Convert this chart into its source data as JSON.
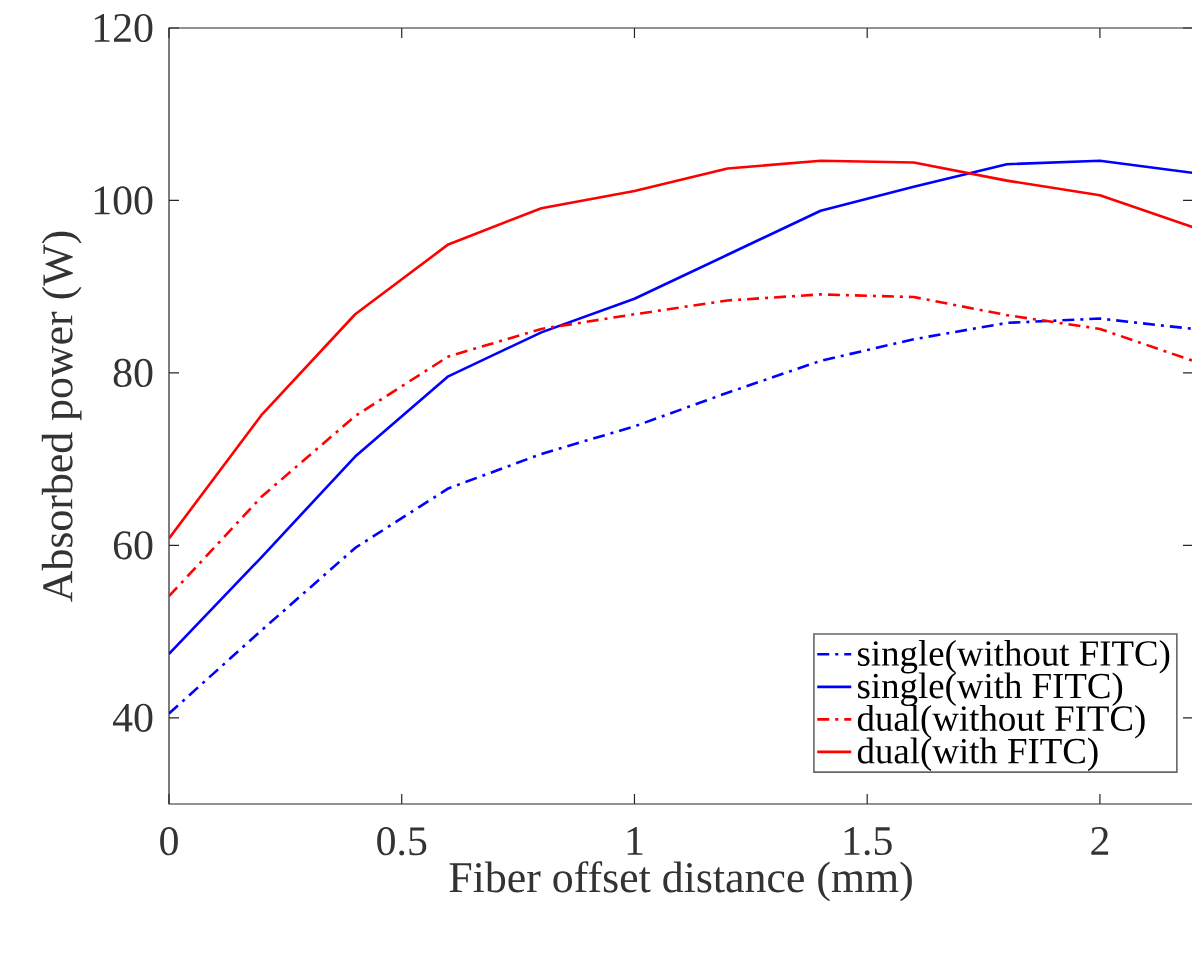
{
  "chart_data": {
    "type": "line",
    "xlabel": "Fiber offset distance (mm)",
    "ylabel": "Absorbed power (W)",
    "x": [
      0,
      0.2,
      0.4,
      0.6,
      0.8,
      1.0,
      1.2,
      1.4,
      1.6,
      1.8,
      2.0,
      2.2
    ],
    "series": [
      {
        "name": "single(without FITC)",
        "color": "#0000ff",
        "line_style": "dashdot",
        "values": [
          40.5,
          50.2,
          59.7,
          66.6,
          70.6,
          73.8,
          77.7,
          81.4,
          83.9,
          85.8,
          86.3,
          85.1
        ]
      },
      {
        "name": "single(with FITC)",
        "color": "#0000ff",
        "line_style": "solid",
        "values": [
          47.4,
          58.7,
          70.3,
          79.6,
          84.7,
          88.6,
          93.7,
          98.8,
          101.6,
          104.2,
          104.6,
          103.2
        ]
      },
      {
        "name": "dual(without FITC)",
        "color": "#ff0000",
        "line_style": "dashdot",
        "values": [
          54.1,
          65.7,
          75.0,
          81.9,
          85.1,
          86.8,
          88.4,
          89.1,
          88.8,
          86.7,
          85.1,
          81.4
        ]
      },
      {
        "name": "dual(with FITC)",
        "color": "#ff0000",
        "line_style": "solid",
        "values": [
          60.8,
          75.2,
          86.8,
          94.9,
          99.1,
          101.1,
          103.7,
          104.6,
          104.4,
          102.3,
          100.6,
          96.9
        ]
      }
    ],
    "xlim": [
      0,
      2.2
    ],
    "ylim": [
      30,
      120
    ],
    "xticks": [
      0,
      0.5,
      1,
      1.5,
      2
    ],
    "yticks": [
      40,
      60,
      80,
      100,
      120
    ],
    "legend": "bottom right",
    "grid": false,
    "marker": "none"
  }
}
